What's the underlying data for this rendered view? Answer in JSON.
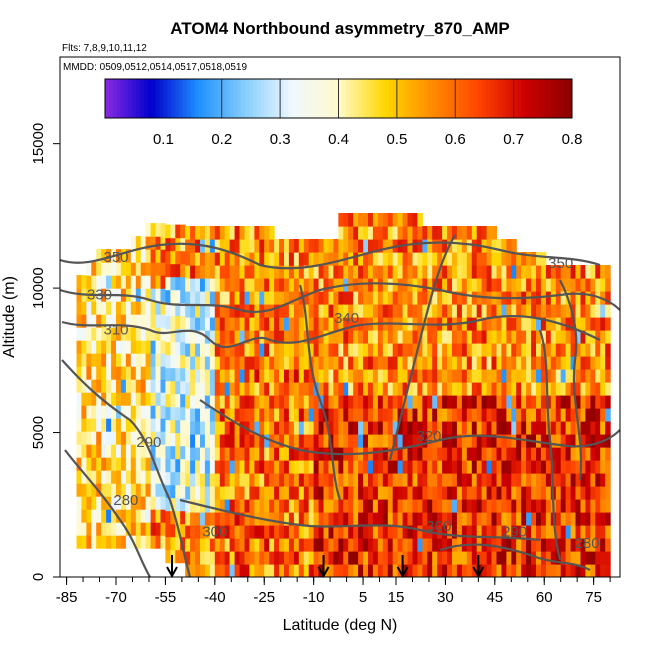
{
  "chart_data": {
    "type": "heatmap",
    "title": "ATOM4 Northbound asymmetry_870_AMP",
    "subtitle_flights": "Flts: 7,8,9,10,11,12",
    "subtitle_dates": "MMDD: 0509,0512,0514,0517,0518,0519",
    "xlabel": "Latitude (deg N)",
    "ylabel": "Altitude (m)",
    "xlim": [
      -87,
      83
    ],
    "ylim": [
      0,
      18000
    ],
    "x_ticks": [
      -85,
      -70,
      -55,
      -40,
      -25,
      -10,
      5,
      15,
      30,
      45,
      60,
      75
    ],
    "x_tick_labels": [
      "-85",
      "-70",
      "-55",
      "-40",
      "-25",
      "-10",
      "5",
      "15",
      "30",
      "45",
      "60",
      "75"
    ],
    "x_minor_step": 5,
    "y_ticks": [
      0,
      5000,
      10000,
      15000
    ],
    "y_tick_labels": [
      "0",
      "5000",
      "10000",
      "15000"
    ],
    "colorbar": {
      "range": [
        0,
        0.8
      ],
      "ticks": [
        0.1,
        0.2,
        0.3,
        0.4,
        0.5,
        0.6,
        0.7,
        0.8
      ],
      "tick_labels": [
        "0.1",
        "0.2",
        "0.3",
        "0.4",
        "0.5",
        "0.6",
        "0.7",
        "0.8"
      ],
      "colors": [
        "#8a2be2",
        "#0000cd",
        "#1e90ff",
        "#87cefa",
        "#f0f8ff",
        "#fffacd",
        "#ffd700",
        "#ff8c00",
        "#ff4500",
        "#cc0000",
        "#8b0000"
      ]
    },
    "field_summary": [
      {
        "lat_range": [
          -82,
          -60
        ],
        "alt_range": [
          0,
          12000
        ],
        "typical_value": 0.45
      },
      {
        "lat_range": [
          -60,
          -40
        ],
        "alt_range": [
          2000,
          10000
        ],
        "typical_value": 0.32
      },
      {
        "lat_range": [
          -40,
          -10
        ],
        "alt_range": [
          0,
          8000
        ],
        "typical_value": 0.58
      },
      {
        "lat_range": [
          -10,
          80
        ],
        "alt_range": [
          0,
          6000
        ],
        "typical_value": 0.66
      },
      {
        "lat_range": [
          -10,
          80
        ],
        "alt_range": [
          6000,
          12000
        ],
        "typical_value": 0.56
      }
    ],
    "contour_labels": [
      {
        "text": "350",
        "lat": -70,
        "alt": 10900
      },
      {
        "text": "330",
        "lat": -75,
        "alt": 9600
      },
      {
        "text": "310",
        "lat": -70,
        "alt": 8400
      },
      {
        "text": "340",
        "lat": 0,
        "alt": 8800
      },
      {
        "text": "350",
        "lat": 65,
        "alt": 10700
      },
      {
        "text": "290",
        "lat": -60,
        "alt": 4500
      },
      {
        "text": "280",
        "lat": -67,
        "alt": 2500
      },
      {
        "text": "320",
        "lat": 25,
        "alt": 4700
      },
      {
        "text": "300",
        "lat": -40,
        "alt": 1400
      },
      {
        "text": "300",
        "lat": 28,
        "alt": 1600
      },
      {
        "text": "290",
        "lat": 51,
        "alt": 1400
      },
      {
        "text": "280",
        "lat": 73,
        "alt": 1000
      }
    ],
    "arrows_lat": [
      -53,
      -7,
      17,
      40
    ]
  }
}
